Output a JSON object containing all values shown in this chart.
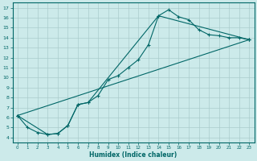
{
  "xlabel": "Humidex (Indice chaleur)",
  "bg_color": "#cceaea",
  "grid_color": "#aacccc",
  "line_color": "#006666",
  "xlim": [
    -0.5,
    23.5
  ],
  "ylim": [
    3.5,
    17.5
  ],
  "xticks": [
    0,
    1,
    2,
    3,
    4,
    5,
    6,
    7,
    8,
    9,
    10,
    11,
    12,
    13,
    14,
    15,
    16,
    17,
    18,
    19,
    20,
    21,
    22,
    23
  ],
  "yticks": [
    4,
    5,
    6,
    7,
    8,
    9,
    10,
    11,
    12,
    13,
    14,
    15,
    16,
    17
  ],
  "line1_x": [
    0,
    1,
    2,
    3,
    4,
    5,
    6,
    7,
    8,
    9,
    10,
    11,
    12,
    13,
    14,
    15,
    16,
    17,
    18,
    19,
    20,
    21,
    22,
    23
  ],
  "line1_y": [
    6.2,
    5.0,
    4.5,
    4.3,
    4.4,
    5.2,
    7.3,
    7.5,
    8.2,
    9.8,
    10.2,
    11.0,
    11.8,
    13.3,
    16.2,
    16.8,
    16.1,
    15.8,
    14.8,
    14.3,
    14.2,
    14.0,
    14.0,
    13.8
  ],
  "line2_x": [
    0,
    3,
    4,
    5,
    6,
    7,
    14,
    23
  ],
  "line2_y": [
    6.2,
    4.3,
    4.4,
    5.2,
    7.3,
    7.5,
    16.2,
    13.8
  ],
  "line3_x": [
    0,
    23
  ],
  "line3_y": [
    6.2,
    13.8
  ]
}
